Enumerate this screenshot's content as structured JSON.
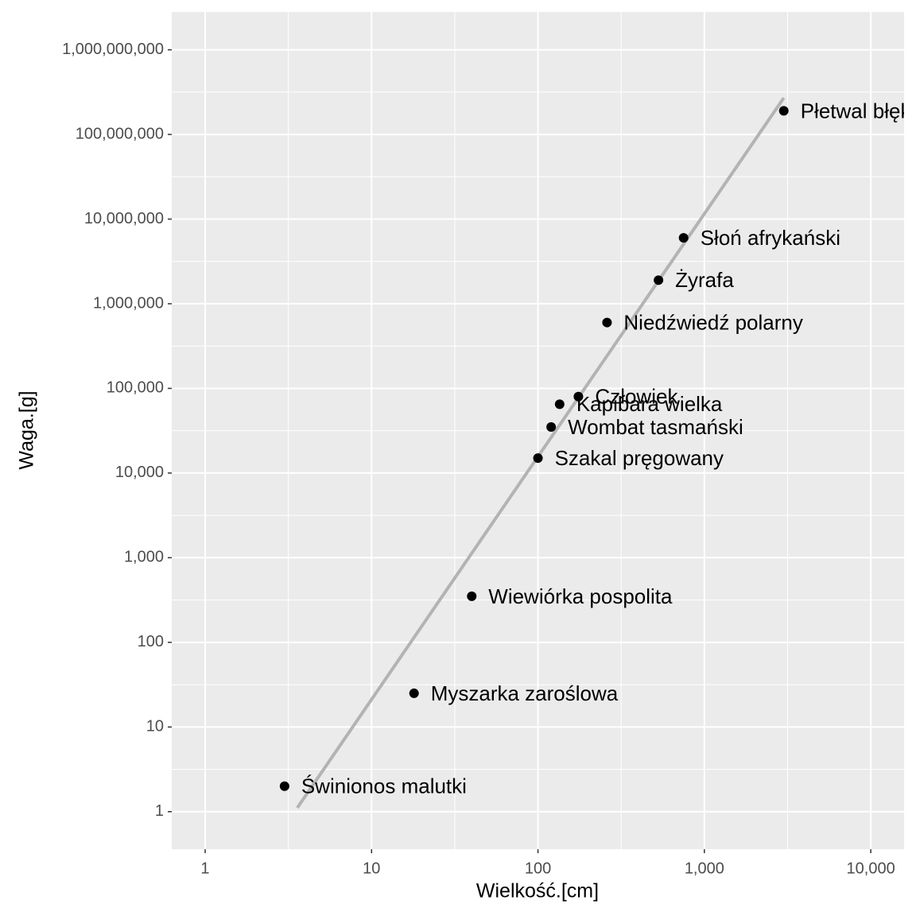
{
  "chart_data": {
    "type": "scatter",
    "x_label": "Wielkość.[cm]",
    "y_label": "Waga.[g]",
    "x_log": true,
    "y_log": true,
    "grid": true,
    "point_color": "#000000",
    "labels": [
      "Świnionos malutki",
      "Myszarka zaroślowa",
      "Wiewiórka pospolita",
      "Szakal pręgowany",
      "Wombat tasmański",
      "Kapibara wielka",
      "Człowiek",
      "Niedźwiedź polarny",
      "Żyrafa",
      "Słoń afrykański",
      "Płetwal błękitny"
    ],
    "x": [
      3,
      18,
      40,
      100,
      120,
      135,
      175,
      260,
      530,
      750,
      3000
    ],
    "y": [
      2,
      25,
      350,
      15000,
      35000,
      65000,
      80000,
      600000,
      1900000,
      6000000,
      190000000
    ],
    "trend_line": {
      "color": "#b3b3b3",
      "x": [
        3.58,
        3000
      ],
      "y": [
        1.11,
        270000000
      ]
    },
    "xlim": [
      0.63,
      15849
    ],
    "ylim": [
      0.36,
      2800000000
    ],
    "xticks": [
      1,
      10,
      100,
      {
        "value": 1000,
        "label": "1,000"
      },
      {
        "value": 10000,
        "label": "10,000"
      }
    ],
    "yticks": [
      1,
      10,
      100,
      {
        "value": 1000,
        "label": "1,000"
      },
      {
        "value": 10000,
        "label": "10,000"
      },
      {
        "value": 100000,
        "label": "100,000"
      },
      {
        "value": 1000000,
        "label": "1,000,000"
      },
      {
        "value": 10000000,
        "label": "10,000,000"
      },
      {
        "value": 100000000,
        "label": "100,000,000"
      },
      {
        "value": 1000000000,
        "label": "1,000,000,000"
      }
    ]
  }
}
